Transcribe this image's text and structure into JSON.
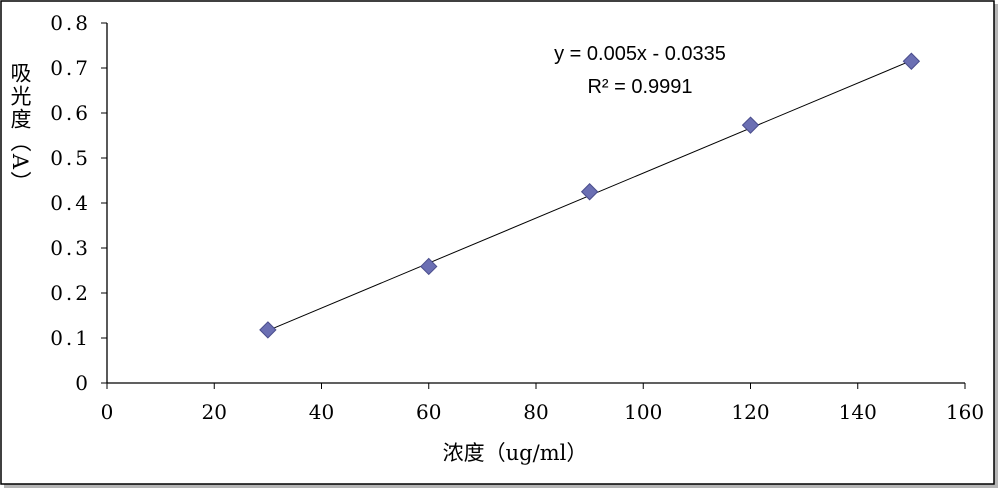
{
  "chart_data": {
    "type": "scatter",
    "xlabel": "浓度（ug/ml）",
    "ylabel": "吸光度（A）",
    "xlim": [
      0,
      160
    ],
    "ylim": [
      0,
      0.8
    ],
    "x_ticks": [
      "0",
      "20",
      "40",
      "60",
      "80",
      "100",
      "120",
      "140",
      "160"
    ],
    "y_ticks": [
      "0",
      "0.1",
      "0.2",
      "0.3",
      "0.4",
      "0.5",
      "0.6",
      "0.7",
      "0.8"
    ],
    "grid": false,
    "legend": "none",
    "series": [
      {
        "x": [
          30,
          60,
          90,
          120,
          150
        ],
        "y": [
          0.118,
          0.259,
          0.425,
          0.573,
          0.715
        ],
        "marker": "diamond",
        "color": "#6b6fb3"
      }
    ],
    "trendline": {
      "type": "linear",
      "slope": 0.005,
      "intercept": -0.0335,
      "x_range": [
        30,
        150
      ],
      "equation": "y = 0.005x - 0.0335",
      "r_squared": "R² = 0.9991",
      "color": "#000000"
    }
  }
}
